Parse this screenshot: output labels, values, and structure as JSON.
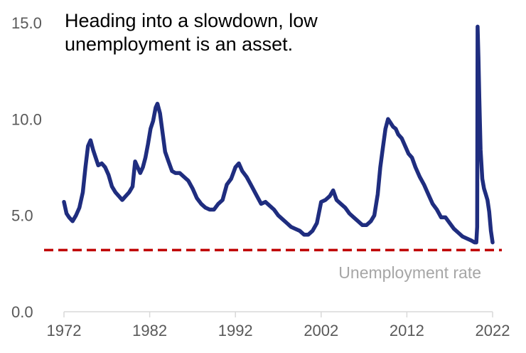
{
  "chart_data": {
    "type": "line",
    "title": [
      "Heading into a slowdown, low",
      "unemployment is an asset."
    ],
    "xlabel": "",
    "ylabel": "",
    "xlim": [
      1972,
      2022
    ],
    "ylim": [
      0,
      15
    ],
    "x_ticks": [
      "1972",
      "1982",
      "1992",
      "2002",
      "2012",
      "2022"
    ],
    "y_ticks": [
      "15.0",
      "10.0",
      "5.0",
      "0.0"
    ],
    "grid": false,
    "legend": "none",
    "colors": {
      "line": "#1f2d7f",
      "reference": "#c00000",
      "annotation": "#a6a6a6",
      "axis": "#d9d9d9"
    },
    "reference_line": {
      "y": 3.2,
      "style": "dashed"
    },
    "annotations": [
      {
        "text": "Unemployment rate",
        "x": 2021.5,
        "y": 1.9
      }
    ],
    "series": [
      {
        "x": [
          1972.0,
          1972.3,
          1972.6,
          1973.0,
          1973.4,
          1973.8,
          1974.2,
          1974.5,
          1974.8,
          1975.1,
          1975.4,
          1975.7,
          1976.0,
          1976.4,
          1976.8,
          1977.2,
          1977.6,
          1978.0,
          1978.4,
          1978.8,
          1979.2,
          1979.6,
          1980.0,
          1980.3,
          1980.6,
          1980.9,
          1981.2,
          1981.5,
          1981.8,
          1982.1,
          1982.4,
          1982.7,
          1982.9,
          1983.2,
          1983.5,
          1983.8,
          1984.2,
          1984.6,
          1985.0,
          1985.5,
          1986.0,
          1986.5,
          1987.0,
          1987.5,
          1988.0,
          1988.5,
          1989.0,
          1989.5,
          1990.0,
          1990.5,
          1991.0,
          1991.5,
          1992.0,
          1992.4,
          1992.8,
          1993.3,
          1993.8,
          1994.4,
          1995.0,
          1995.5,
          1996.0,
          1996.5,
          1997.0,
          1997.5,
          1998.0,
          1998.5,
          1999.0,
          1999.5,
          2000.0,
          2000.5,
          2001.0,
          2001.5,
          2002.0,
          2002.5,
          2003.0,
          2003.4,
          2003.8,
          2004.3,
          2004.8,
          2005.3,
          2005.8,
          2006.3,
          2006.8,
          2007.3,
          2007.8,
          2008.2,
          2008.6,
          2008.9,
          2009.2,
          2009.5,
          2009.8,
          2010.1,
          2010.4,
          2010.7,
          2011.0,
          2011.4,
          2011.8,
          2012.2,
          2012.6,
          2013.0,
          2013.5,
          2014.0,
          2014.5,
          2015.0,
          2015.5,
          2016.0,
          2016.5,
          2017.0,
          2017.5,
          2018.0,
          2018.5,
          2019.0,
          2019.5,
          2019.9,
          2020.1,
          2020.2,
          2020.25,
          2020.35,
          2020.45,
          2020.6,
          2020.8,
          2021.0,
          2021.2,
          2021.4,
          2021.6,
          2021.8,
          2022.0
        ],
        "values": [
          5.7,
          5.1,
          4.9,
          4.7,
          5.0,
          5.4,
          6.2,
          7.5,
          8.6,
          8.9,
          8.4,
          8.0,
          7.6,
          7.7,
          7.5,
          7.1,
          6.5,
          6.2,
          6.0,
          5.8,
          6.0,
          6.2,
          6.5,
          7.8,
          7.5,
          7.2,
          7.5,
          8.0,
          8.7,
          9.5,
          9.9,
          10.6,
          10.8,
          10.3,
          9.3,
          8.3,
          7.8,
          7.3,
          7.2,
          7.2,
          7.0,
          6.8,
          6.4,
          5.9,
          5.6,
          5.4,
          5.3,
          5.3,
          5.6,
          5.8,
          6.6,
          6.9,
          7.5,
          7.7,
          7.3,
          7.0,
          6.6,
          6.1,
          5.6,
          5.7,
          5.5,
          5.3,
          5.0,
          4.8,
          4.6,
          4.4,
          4.3,
          4.2,
          4.0,
          4.0,
          4.2,
          4.6,
          5.7,
          5.8,
          6.0,
          6.3,
          5.8,
          5.6,
          5.4,
          5.1,
          4.9,
          4.7,
          4.5,
          4.5,
          4.7,
          5.0,
          6.1,
          7.5,
          8.5,
          9.5,
          10.0,
          9.8,
          9.6,
          9.5,
          9.2,
          9.0,
          8.6,
          8.2,
          8.0,
          7.5,
          7.0,
          6.6,
          6.1,
          5.6,
          5.3,
          4.9,
          4.9,
          4.6,
          4.3,
          4.1,
          3.9,
          3.8,
          3.7,
          3.6,
          3.6,
          4.4,
          14.8,
          13.2,
          11.1,
          8.4,
          6.9,
          6.4,
          6.1,
          5.8,
          5.2,
          4.2,
          3.6
        ]
      }
    ]
  }
}
